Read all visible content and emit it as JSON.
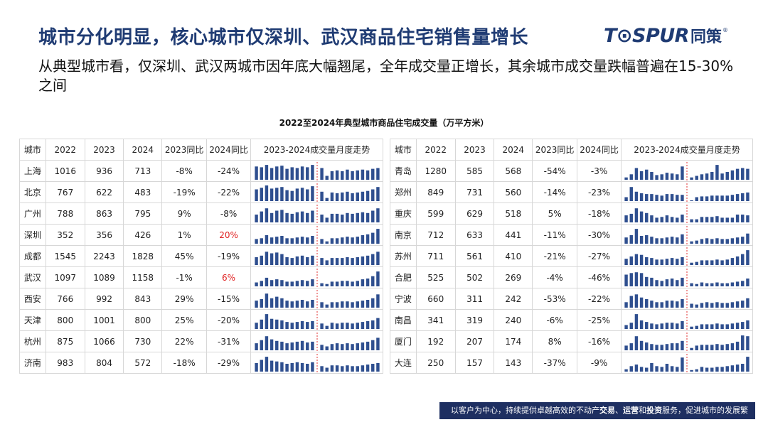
{
  "header": {
    "title": "城市分化明显，核心城市仅深圳、武汉商品住宅销售量增长",
    "logo_brand": "T⊙SPUR",
    "logo_cn": "同策",
    "logo_reg": "®"
  },
  "subtitle": "从典型城市看，仅深圳、武汉两城市因年底大幅翘尾，全年成交量正增长，其余城市成交量跌幅普遍在15-30%之间",
  "chart_title": "2022至2024年典型城市商品住宅成交量（万平方米）",
  "table": {
    "headers": [
      "城市",
      "2022",
      "2023",
      "2024",
      "2023同比",
      "2024同比",
      "2023-2024成交量月度走势"
    ],
    "bar_color": "#2f4f8f",
    "divider_color": "#e03030",
    "highlight_color": "#e02020",
    "left_rows": [
      {
        "city": "上海",
        "y2022": "1016",
        "y2023": "936",
        "y2024": "713",
        "yoy2023": "-8%",
        "yoy2024": "-24%",
        "highlight": false,
        "trend": [
          0.85,
          0.8,
          0.95,
          0.75,
          0.85,
          0.9,
          0.7,
          0.8,
          0.75,
          0.85,
          0.8,
          0.95,
          0.75,
          0.25,
          0.55,
          0.6,
          0.55,
          0.65,
          0.55,
          0.6,
          0.65,
          0.6,
          0.7,
          0.75
        ]
      },
      {
        "city": "北京",
        "y2022": "767",
        "y2023": "622",
        "y2024": "483",
        "yoy2023": "-19%",
        "yoy2024": "-22%",
        "highlight": false,
        "trend": [
          0.75,
          0.85,
          1.0,
          0.8,
          0.85,
          0.9,
          0.7,
          0.65,
          0.8,
          0.85,
          0.75,
          0.95,
          0.6,
          0.2,
          0.55,
          0.5,
          0.55,
          0.6,
          0.5,
          0.55,
          0.6,
          0.65,
          0.75,
          0.9
        ]
      },
      {
        "city": "广州",
        "y2022": "788",
        "y2023": "863",
        "y2024": "795",
        "yoy2023": "9%",
        "yoy2024": "-8%",
        "highlight": false,
        "trend": [
          0.5,
          0.7,
          0.9,
          0.6,
          0.75,
          0.8,
          0.6,
          0.55,
          0.65,
          0.7,
          0.6,
          0.75,
          0.5,
          0.3,
          0.55,
          0.55,
          0.5,
          0.6,
          0.55,
          0.6,
          0.65,
          0.6,
          0.75,
          0.9
        ]
      },
      {
        "city": "深圳",
        "y2022": "352",
        "y2023": "356",
        "y2024": "426",
        "yoy2023": "1%",
        "yoy2024": "20%",
        "highlight": true,
        "trend": [
          0.3,
          0.35,
          0.55,
          0.4,
          0.45,
          0.5,
          0.35,
          0.35,
          0.4,
          0.45,
          0.4,
          0.5,
          0.3,
          0.15,
          0.35,
          0.35,
          0.4,
          0.45,
          0.4,
          0.45,
          0.55,
          0.6,
          0.7,
          0.95
        ]
      },
      {
        "city": "成都",
        "y2022": "1545",
        "y2023": "2243",
        "y2024": "1828",
        "yoy2023": "45%",
        "yoy2024": "-19%",
        "highlight": false,
        "trend": [
          0.5,
          0.6,
          0.85,
          0.75,
          0.8,
          0.7,
          0.5,
          0.45,
          0.55,
          0.6,
          0.5,
          0.6,
          0.45,
          0.3,
          0.45,
          0.45,
          0.45,
          0.5,
          0.45,
          0.5,
          0.55,
          0.6,
          0.7,
          0.85
        ]
      },
      {
        "city": "武汉",
        "y2022": "1097",
        "y2023": "1089",
        "y2024": "1158",
        "yoy2023": "-1%",
        "yoy2024": "6%",
        "highlight": true,
        "trend": [
          0.25,
          0.35,
          0.55,
          0.4,
          0.45,
          0.4,
          0.3,
          0.3,
          0.35,
          0.4,
          0.35,
          0.45,
          0.2,
          0.15,
          0.3,
          0.3,
          0.35,
          0.35,
          0.3,
          0.35,
          0.45,
          0.5,
          0.65,
          0.95
        ]
      },
      {
        "city": "西安",
        "y2022": "766",
        "y2023": "992",
        "y2024": "843",
        "yoy2023": "29%",
        "yoy2024": "-15%",
        "highlight": false,
        "trend": [
          0.45,
          0.55,
          0.9,
          0.6,
          0.7,
          0.6,
          0.45,
          0.4,
          0.45,
          0.5,
          0.4,
          0.5,
          0.35,
          0.2,
          0.35,
          0.35,
          0.4,
          0.4,
          0.35,
          0.4,
          0.45,
          0.5,
          0.6,
          0.85
        ]
      },
      {
        "city": "天津",
        "y2022": "800",
        "y2023": "1001",
        "y2024": "800",
        "yoy2023": "25%",
        "yoy2024": "-20%",
        "highlight": false,
        "trend": [
          0.4,
          0.6,
          0.95,
          0.65,
          0.6,
          0.55,
          0.45,
          0.4,
          0.45,
          0.5,
          0.45,
          0.5,
          0.35,
          0.2,
          0.4,
          0.35,
          0.4,
          0.4,
          0.35,
          0.4,
          0.45,
          0.5,
          0.55,
          0.7
        ]
      },
      {
        "city": "杭州",
        "y2022": "875",
        "y2023": "1066",
        "y2024": "730",
        "yoy2023": "22%",
        "yoy2024": "-31%",
        "highlight": false,
        "trend": [
          0.45,
          0.65,
          0.9,
          0.7,
          0.6,
          0.55,
          0.45,
          0.5,
          0.55,
          0.6,
          0.5,
          0.55,
          0.35,
          0.25,
          0.4,
          0.45,
          0.4,
          0.45,
          0.4,
          0.45,
          0.5,
          0.55,
          0.65,
          0.8
        ]
      },
      {
        "city": "济南",
        "y2022": "983",
        "y2023": "804",
        "y2024": "572",
        "yoy2023": "-18%",
        "yoy2024": "-29%",
        "highlight": false,
        "trend": [
          0.55,
          0.75,
          0.95,
          0.7,
          0.65,
          0.6,
          0.5,
          0.55,
          0.6,
          0.55,
          0.5,
          0.6,
          0.35,
          0.25,
          0.4,
          0.4,
          0.35,
          0.4,
          0.35,
          0.35,
          0.4,
          0.45,
          0.5,
          0.55
        ]
      }
    ],
    "right_rows": [
      {
        "city": "青岛",
        "y2022": "1280",
        "y2023": "585",
        "y2024": "568",
        "yoy2023": "-54%",
        "yoy2024": "-3%",
        "highlight": false,
        "trend": [
          0.15,
          0.35,
          0.75,
          0.55,
          0.65,
          0.5,
          0.3,
          0.35,
          0.45,
          0.4,
          0.35,
          0.85,
          0.15,
          0.25,
          0.35,
          0.4,
          0.5,
          0.95,
          0.4,
          0.5,
          0.6,
          0.7,
          0.75,
          0.7
        ]
      },
      {
        "city": "郑州",
        "y2022": "849",
        "y2023": "731",
        "y2024": "560",
        "yoy2023": "-14%",
        "yoy2024": "-23%",
        "highlight": false,
        "trend": [
          0.25,
          0.9,
          0.6,
          0.5,
          0.45,
          0.45,
          0.4,
          0.35,
          0.45,
          0.45,
          0.4,
          0.4,
          0.05,
          0.25,
          0.3,
          0.3,
          0.35,
          0.35,
          0.35,
          0.35,
          0.4,
          0.45,
          0.5,
          0.55
        ]
      },
      {
        "city": "重庆",
        "y2022": "599",
        "y2023": "629",
        "y2024": "518",
        "yoy2023": "5%",
        "yoy2024": "-18%",
        "highlight": false,
        "trend": [
          0.45,
          0.55,
          0.9,
          0.7,
          0.6,
          0.45,
          0.3,
          0.35,
          0.45,
          0.35,
          0.3,
          0.5,
          0.2,
          0.2,
          0.35,
          0.35,
          0.35,
          0.4,
          0.3,
          0.3,
          0.3,
          0.5,
          0.5,
          0.45
        ]
      },
      {
        "city": "南京",
        "y2022": "712",
        "y2023": "633",
        "y2024": "441",
        "yoy2023": "-11%",
        "yoy2024": "-30%",
        "highlight": false,
        "trend": [
          0.4,
          0.55,
          0.95,
          0.5,
          0.55,
          0.45,
          0.35,
          0.35,
          0.4,
          0.45,
          0.4,
          0.6,
          0.15,
          0.2,
          0.3,
          0.35,
          0.3,
          0.35,
          0.3,
          0.3,
          0.35,
          0.4,
          0.45,
          0.65
        ]
      },
      {
        "city": "苏州",
        "y2022": "711",
        "y2023": "561",
        "y2024": "410",
        "yoy2023": "-21%",
        "yoy2024": "-27%",
        "highlight": false,
        "trend": [
          0.4,
          0.55,
          0.7,
          0.65,
          0.5,
          0.45,
          0.35,
          0.35,
          0.4,
          0.45,
          0.4,
          0.5,
          0.15,
          0.2,
          0.3,
          0.3,
          0.3,
          0.35,
          0.3,
          0.35,
          0.45,
          0.55,
          0.7,
          0.95
        ]
      },
      {
        "city": "合肥",
        "y2022": "525",
        "y2023": "502",
        "y2024": "269",
        "yoy2023": "-4%",
        "yoy2024": "-46%",
        "highlight": false,
        "trend": [
          0.75,
          0.85,
          0.9,
          0.85,
          0.6,
          0.55,
          0.4,
          0.35,
          0.45,
          0.5,
          0.4,
          0.55,
          0.2,
          0.15,
          0.25,
          0.2,
          0.2,
          0.25,
          0.2,
          0.2,
          0.25,
          0.3,
          0.35,
          0.5
        ]
      },
      {
        "city": "宁波",
        "y2022": "660",
        "y2023": "311",
        "y2024": "242",
        "yoy2023": "-53%",
        "yoy2024": "-22%",
        "highlight": false,
        "trend": [
          0.35,
          0.75,
          0.85,
          0.65,
          0.55,
          0.45,
          0.35,
          0.35,
          0.45,
          0.45,
          0.4,
          0.55,
          0.25,
          0.2,
          0.3,
          0.35,
          0.3,
          0.35,
          0.3,
          0.3,
          0.35,
          0.4,
          0.45,
          0.6
        ]
      },
      {
        "city": "南昌",
        "y2022": "341",
        "y2023": "319",
        "y2024": "240",
        "yoy2023": "-6%",
        "yoy2024": "-25%",
        "highlight": false,
        "trend": [
          0.25,
          0.4,
          0.95,
          0.55,
          0.45,
          0.35,
          0.3,
          0.35,
          0.4,
          0.4,
          0.35,
          0.5,
          0.15,
          0.2,
          0.3,
          0.3,
          0.3,
          0.35,
          0.3,
          0.3,
          0.35,
          0.4,
          0.45,
          0.55
        ]
      },
      {
        "city": "厦门",
        "y2022": "192",
        "y2023": "207",
        "y2024": "174",
        "yoy2023": "8%",
        "yoy2024": "-16%",
        "highlight": false,
        "trend": [
          0.3,
          0.45,
          0.9,
          0.6,
          0.5,
          0.4,
          0.35,
          0.35,
          0.4,
          0.45,
          0.45,
          0.6,
          0.15,
          0.3,
          0.35,
          0.35,
          0.35,
          0.4,
          0.35,
          0.4,
          0.45,
          0.55,
          0.95,
          0.9
        ]
      },
      {
        "city": "大连",
        "y2022": "250",
        "y2023": "157",
        "y2024": "143",
        "yoy2023": "-37%",
        "yoy2024": "-9%",
        "highlight": false,
        "trend": [
          0.15,
          0.35,
          0.45,
          0.3,
          0.25,
          0.55,
          0.35,
          0.3,
          0.5,
          0.35,
          0.3,
          0.9,
          0.1,
          0.15,
          0.3,
          0.25,
          0.25,
          0.3,
          0.3,
          0.35,
          0.4,
          0.45,
          0.5,
          0.95
        ]
      }
    ]
  },
  "footer": {
    "text_a": "以客户为中心，持续提供卓越高效的不动产",
    "bold_1": "交易",
    "sep_1": "、",
    "bold_2": "运营",
    "sep_2": "和",
    "bold_3": "投资",
    "text_b": "服务，促进城市的发展繁荣"
  }
}
